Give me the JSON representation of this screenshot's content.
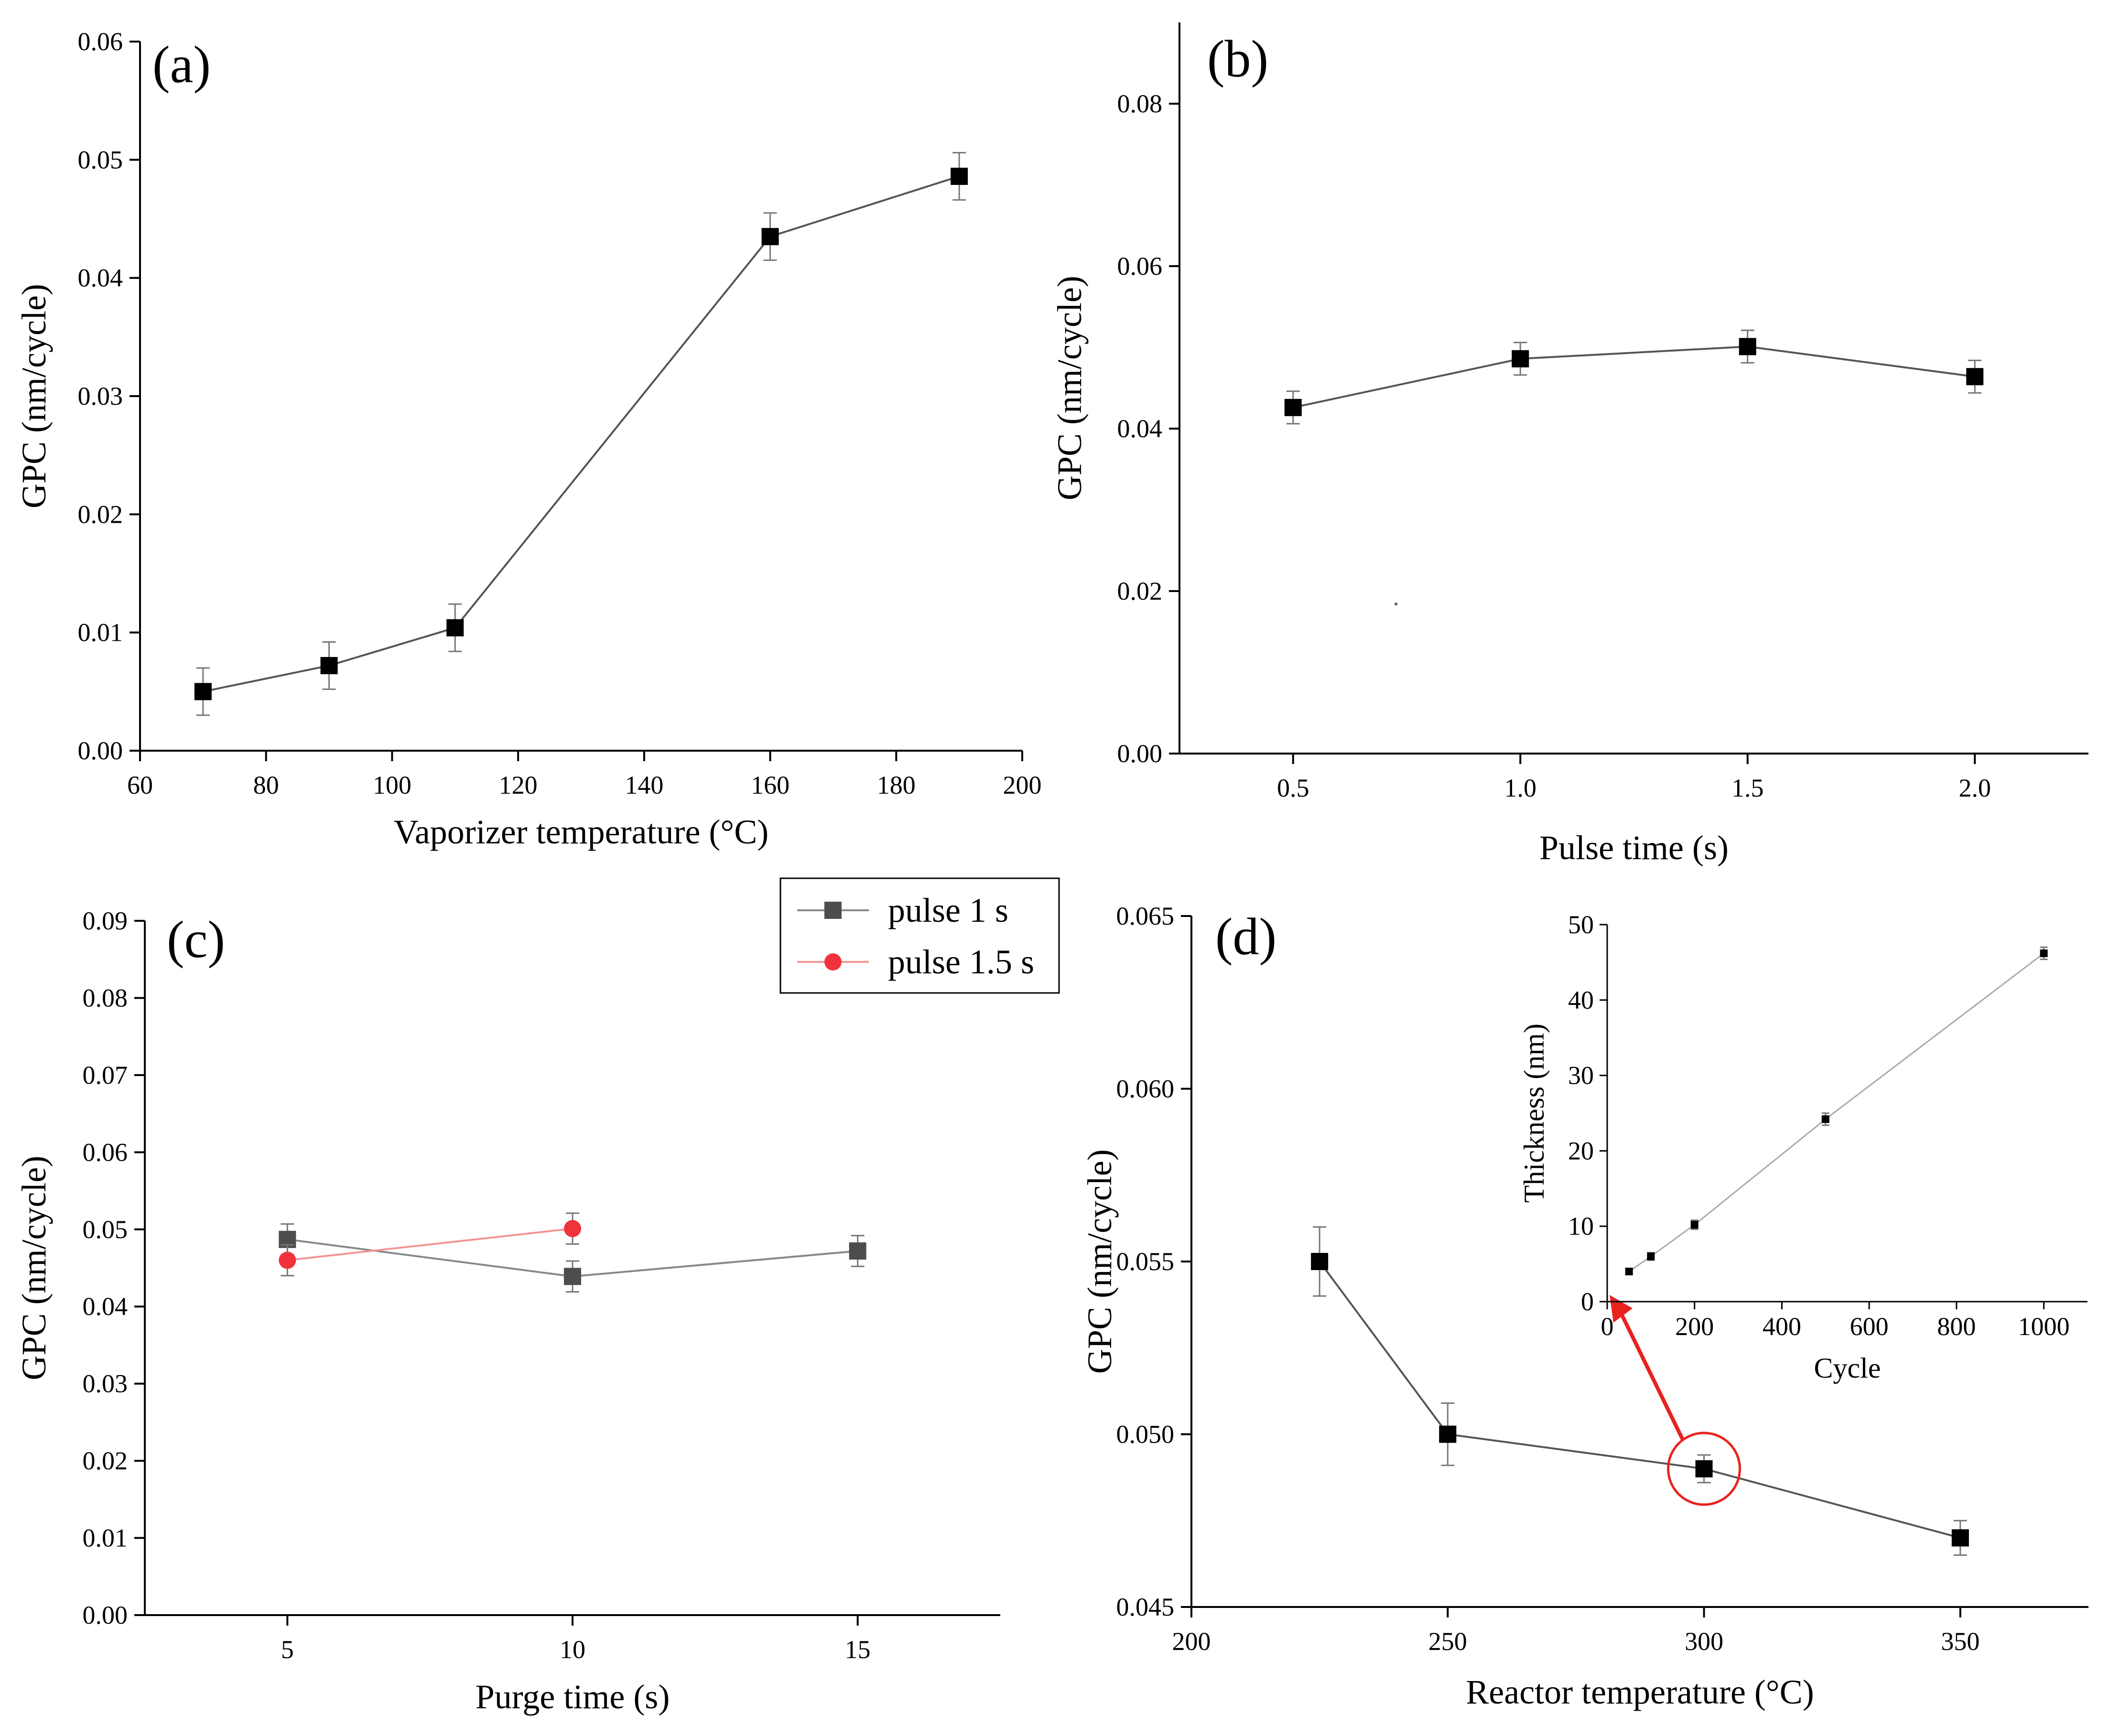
{
  "chart_data": [
    {
      "id": "a",
      "type": "line",
      "panel_label": "(a)",
      "xlabel": "Vaporizer temperature (°C)",
      "ylabel": "GPC (nm/cycle)",
      "xlim": [
        60,
        200
      ],
      "ylim": [
        0,
        0.06
      ],
      "xticks": [
        60,
        80,
        100,
        120,
        140,
        160,
        180,
        200
      ],
      "xtick_labels": [
        "60",
        "80",
        "100",
        "120",
        "140",
        "160",
        "180",
        "200"
      ],
      "yticks": [
        0,
        0.01,
        0.02,
        0.03,
        0.04,
        0.05,
        0.06
      ],
      "ytick_labels": [
        "0.00",
        "0.01",
        "0.02",
        "0.03",
        "0.04",
        "0.05",
        "0.06"
      ],
      "series": [
        {
          "name": "GPC",
          "color": "#000000",
          "line_color": "#555555",
          "marker": "square",
          "x": [
            70,
            90,
            110,
            160,
            190
          ],
          "y": [
            0.005,
            0.0072,
            0.0104,
            0.0435,
            0.0486
          ],
          "err": [
            0.002,
            0.002,
            0.002,
            0.002,
            0.002
          ]
        }
      ]
    },
    {
      "id": "b",
      "type": "line",
      "panel_label": "(b)",
      "xlabel": "Pulse time (s)",
      "ylabel": "GPC (nm/cycle)",
      "xlim": [
        0.25,
        2.25
      ],
      "ylim": [
        0,
        0.09
      ],
      "xticks": [
        0.5,
        1.0,
        1.5,
        2.0
      ],
      "xtick_labels": [
        "0.5",
        "1.0",
        "1.5",
        "2.0"
      ],
      "yticks": [
        0,
        0.02,
        0.04,
        0.06,
        0.08
      ],
      "ytick_labels": [
        "0.00",
        "0.02",
        "0.04",
        "0.06",
        "0.08"
      ],
      "series": [
        {
          "name": "GPC",
          "color": "#000000",
          "line_color": "#555555",
          "marker": "square",
          "x": [
            0.5,
            1.0,
            1.5,
            2.0
          ],
          "y": [
            0.0426,
            0.0486,
            0.0501,
            0.0464
          ],
          "err": [
            0.002,
            0.002,
            0.002,
            0.002
          ]
        }
      ]
    },
    {
      "id": "c",
      "type": "line",
      "panel_label": "(c)",
      "xlabel": "Purge time (s)",
      "ylabel": "GPC (nm/cycle)",
      "xlim": [
        2.5,
        17.5
      ],
      "ylim": [
        0,
        0.09
      ],
      "xticks": [
        5,
        10,
        15
      ],
      "xtick_labels": [
        "5",
        "10",
        "15"
      ],
      "yticks": [
        0,
        0.01,
        0.02,
        0.03,
        0.04,
        0.05,
        0.06,
        0.07,
        0.08,
        0.09
      ],
      "ytick_labels": [
        "0.00",
        "0.01",
        "0.02",
        "0.03",
        "0.04",
        "0.05",
        "0.06",
        "0.07",
        "0.08",
        "0.09"
      ],
      "legend": {
        "placement": "top-right-outside"
      },
      "series": [
        {
          "name": "pulse 1 s",
          "color": "#4d4d4d",
          "line_color": "#888888",
          "marker": "square",
          "x": [
            5,
            10,
            15
          ],
          "y": [
            0.0487,
            0.0439,
            0.0472
          ],
          "err": [
            0.002,
            0.002,
            0.002
          ]
        },
        {
          "name": "pulse 1.5 s",
          "color": "#f0333a",
          "line_color": "#f29595",
          "marker": "circle",
          "x": [
            5,
            10
          ],
          "y": [
            0.046,
            0.0501
          ],
          "err": [
            0.002,
            0.002
          ]
        }
      ]
    },
    {
      "id": "d",
      "type": "line",
      "panel_label": "(d)",
      "xlabel": "Reactor temperature (°C)",
      "ylabel": "GPC (nm/cycle)",
      "xlim": [
        200,
        375
      ],
      "ylim": [
        0.045,
        0.065
      ],
      "xticks": [
        200,
        250,
        300,
        350
      ],
      "xtick_labels": [
        "200",
        "250",
        "300",
        "350"
      ],
      "yticks": [
        0.045,
        0.05,
        0.055,
        0.06,
        0.065
      ],
      "ytick_labels": [
        "0.045",
        "0.050",
        "0.055",
        "0.060",
        "0.065"
      ],
      "highlight": {
        "x": 300,
        "y": 0.049,
        "color": "#e8231e"
      },
      "series": [
        {
          "name": "GPC",
          "color": "#000000",
          "line_color": "#555555",
          "marker": "square",
          "x": [
            225,
            250,
            300,
            350
          ],
          "y": [
            0.055,
            0.05,
            0.049,
            0.047
          ],
          "err": [
            0.001,
            0.0009,
            0.0004,
            0.0005
          ]
        }
      ]
    },
    {
      "id": "d-inset",
      "type": "line",
      "xlabel": "Cycle",
      "ylabel": "Thickness (nm)",
      "xlim": [
        0,
        1100
      ],
      "ylim": [
        0,
        50
      ],
      "xticks": [
        0,
        200,
        400,
        600,
        800,
        1000
      ],
      "xtick_labels": [
        "0",
        "200",
        "400",
        "600",
        "800",
        "1000"
      ],
      "yticks": [
        0,
        10,
        20,
        30,
        40,
        50
      ],
      "ytick_labels": [
        "0",
        "10",
        "20",
        "30",
        "40",
        "50"
      ],
      "series": [
        {
          "name": "Thickness",
          "color": "#000000",
          "line_color": "#aaaaaa",
          "marker": "square",
          "x": [
            50,
            100,
            200,
            500,
            1000
          ],
          "y": [
            4.0,
            6.0,
            10.2,
            24.2,
            46.2
          ],
          "err": [
            0.4,
            0.5,
            0.6,
            0.8,
            0.8
          ]
        }
      ]
    }
  ]
}
